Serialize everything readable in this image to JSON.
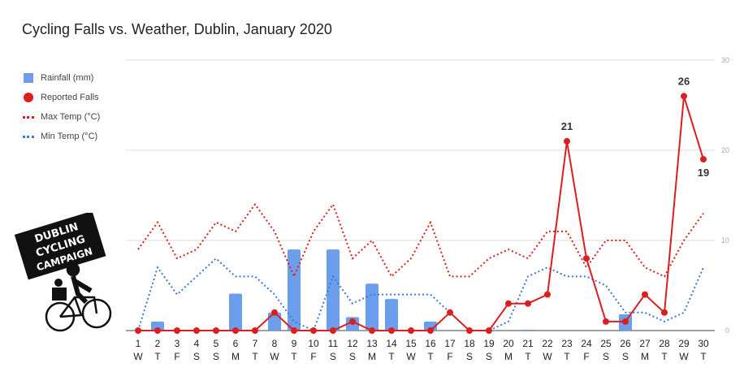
{
  "chart_data": {
    "type": "bar",
    "title": "Cycling Falls vs. Weather, Dublin, January 2020",
    "days": [
      "1",
      "2",
      "3",
      "4",
      "5",
      "6",
      "7",
      "8",
      "9",
      "10",
      "11",
      "12",
      "13",
      "14",
      "15",
      "16",
      "17",
      "18",
      "19",
      "20",
      "21",
      "22",
      "23",
      "24",
      "25",
      "26",
      "27",
      "28",
      "29",
      "30"
    ],
    "weekdays": [
      "W",
      "T",
      "F",
      "S",
      "S",
      "M",
      "T",
      "W",
      "T",
      "F",
      "S",
      "S",
      "M",
      "T",
      "W",
      "T",
      "F",
      "S",
      "S",
      "M",
      "T",
      "W",
      "T",
      "F",
      "S",
      "S",
      "M",
      "T",
      "W",
      "T"
    ],
    "y_ticks": [
      "0",
      "10",
      "20",
      "30"
    ],
    "ylim": [
      0,
      30
    ],
    "grid": true,
    "legend_position": "left",
    "series": [
      {
        "name": "Rainfall (mm)",
        "kind": "bar",
        "color": "#6d9eeb",
        "values": [
          0,
          1,
          0,
          0,
          0,
          4.1,
          0,
          2,
          9,
          0,
          9,
          1.5,
          5.2,
          3.5,
          0,
          1,
          0,
          0,
          0,
          0,
          0.1,
          0,
          0,
          0,
          0,
          1.8,
          0,
          0,
          0,
          0
        ]
      },
      {
        "name": "Reported Falls",
        "kind": "line-markers",
        "color": "#db1f1f",
        "values": [
          0,
          0,
          0,
          0,
          0,
          0,
          0,
          2,
          0,
          0,
          0,
          1,
          0,
          0,
          0,
          0,
          2,
          0,
          0,
          3,
          3,
          4,
          21,
          8,
          1,
          1,
          4,
          2,
          26,
          19
        ]
      },
      {
        "name": "Max Temp (°C)",
        "kind": "dotted",
        "color": "#db1f1f",
        "values": [
          9,
          12,
          8,
          9,
          12,
          11,
          14,
          11,
          6,
          11,
          14,
          8,
          10,
          6,
          8,
          12,
          6,
          6,
          8,
          9,
          8,
          11,
          11,
          7,
          10,
          10,
          7,
          6,
          10,
          13
        ]
      },
      {
        "name": "Min Temp (°C)",
        "kind": "dotted",
        "color": "#3c78d8",
        "values": [
          0,
          7,
          4,
          6,
          8,
          6,
          6,
          4,
          1,
          0,
          6,
          3,
          4,
          4,
          4,
          4,
          2,
          0,
          0,
          1,
          6,
          7,
          6,
          6,
          5,
          2,
          2,
          1,
          2,
          7
        ]
      }
    ],
    "data_labels": [
      {
        "day": "23",
        "text": "21"
      },
      {
        "day": "29",
        "text": "26"
      },
      {
        "day": "30",
        "text": "19"
      }
    ]
  },
  "logo": {
    "lines": [
      "DUBLIN",
      "CYCLING",
      "CAMPAIGN"
    ]
  }
}
